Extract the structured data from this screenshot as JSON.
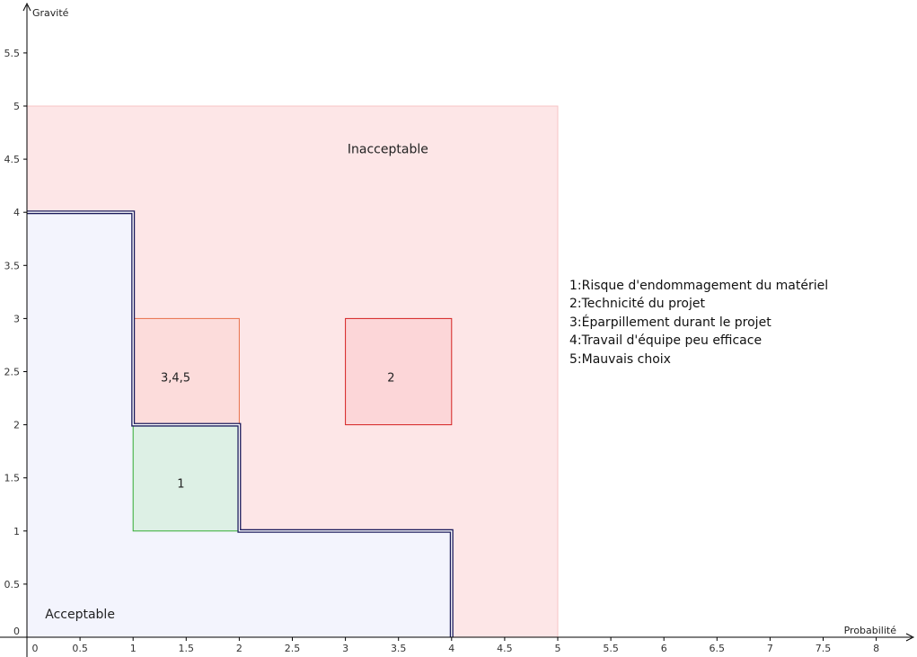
{
  "chart_data": {
    "type": "area",
    "xlabel": "Probabilité",
    "ylabel": "Gravité",
    "xlim": [
      -0.2,
      8.5
    ],
    "ylim": [
      -0.2,
      5.95
    ],
    "x_ticks": [
      0,
      0.5,
      1,
      1.5,
      2,
      2.5,
      3,
      3.5,
      4,
      4.5,
      5,
      5.5,
      6,
      6.5,
      7,
      7.5,
      8
    ],
    "y_ticks": [
      0,
      0.5,
      1,
      1.5,
      2,
      2.5,
      3,
      3.5,
      4,
      4.5,
      5,
      5.5
    ],
    "grid": false,
    "zones": [
      {
        "name": "Inacceptable",
        "x": [
          0,
          5
        ],
        "y": [
          0,
          5
        ],
        "fill": "#fde6e7",
        "stroke": "#f7c4c6"
      },
      {
        "name": "Acceptable",
        "boundary": [
          [
            0,
            4
          ],
          [
            1,
            4
          ],
          [
            1,
            2
          ],
          [
            2,
            2
          ],
          [
            2,
            1
          ],
          [
            4,
            1
          ],
          [
            4,
            0
          ],
          [
            0,
            0
          ]
        ],
        "fill": "#f3f4fd",
        "stroke": "#1a1a5c"
      }
    ],
    "zone_label_positions": [
      {
        "name": "Inacceptable",
        "x": 3.4,
        "y": 4.6
      },
      {
        "name": "Acceptable",
        "x": 0.5,
        "y": 0.22
      }
    ],
    "risks": [
      {
        "label": "1",
        "x": [
          1,
          2
        ],
        "y": [
          1,
          2
        ],
        "fill": "#ddf0e5",
        "stroke": "#33aa33"
      },
      {
        "label": "3,4,5",
        "x": [
          1,
          2
        ],
        "y": [
          2,
          3
        ],
        "fill": "#fcdcdb",
        "stroke": "#e8704a"
      },
      {
        "label": "2",
        "x": [
          3,
          4
        ],
        "y": [
          2,
          3
        ],
        "fill": "#fcd6d8",
        "stroke": "#d42020"
      }
    ],
    "legend_entries": [
      "1:Risque d'endommagement du matériel",
      "2:Technicité du projet",
      "3:Éparpillement durant le projet",
      "4:Travail d'équipe peu efficace",
      "5:Mauvais choix"
    ]
  }
}
